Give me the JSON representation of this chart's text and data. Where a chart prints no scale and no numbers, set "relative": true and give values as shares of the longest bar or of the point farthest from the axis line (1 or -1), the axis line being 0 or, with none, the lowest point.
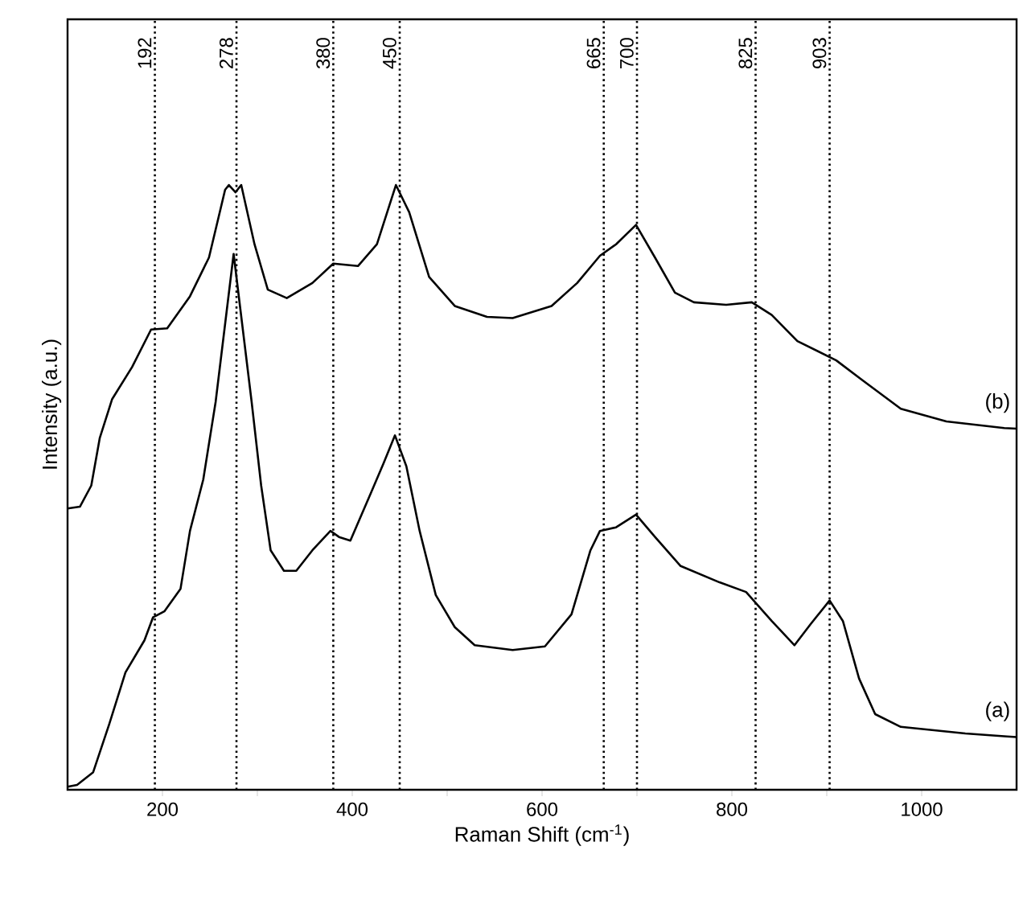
{
  "chart_data": {
    "type": "line",
    "relative": true,
    "xlabel": "Raman Shift (cm$^{-1}$)",
    "ylabel": "Intensity (a.u.)",
    "xlim": [
      100,
      1100
    ],
    "xticks": [
      200,
      {
        "value": 300,
        "label": null
      },
      400,
      {
        "value": 500,
        "label": null
      },
      600,
      {
        "value": 700,
        "label": null
      },
      800,
      {
        "value": 900,
        "label": null
      },
      1000
    ],
    "tick_labels": "x",
    "grid": false,
    "marker": "none",
    "line_style": "solid",
    "series": [
      {
        "name": "(a)",
        "color": "#000000",
        "x": [
          100,
          110,
          127,
          144,
          161,
          181,
          190,
          202,
          219,
          229,
          243,
          256,
          275,
          294,
          304,
          314,
          328,
          341,
          358,
          377,
          386,
          398,
          420,
          433,
          445,
          457,
          471,
          488,
          508,
          529,
          569,
          603,
          631,
          651,
          661,
          678,
          699,
          719,
          746,
          787,
          815,
          842,
          866,
          883,
          903,
          917,
          934,
          951,
          978,
          1046,
          1090,
          1100
        ],
        "values": [
          0.005,
          0.008,
          0.029,
          0.109,
          0.194,
          0.247,
          0.285,
          0.295,
          0.332,
          0.428,
          0.513,
          0.641,
          0.886,
          0.641,
          0.503,
          0.396,
          0.362,
          0.362,
          0.396,
          0.428,
          0.418,
          0.412,
          0.492,
          0.54,
          0.586,
          0.535,
          0.428,
          0.322,
          0.269,
          0.239,
          0.231,
          0.237,
          0.29,
          0.396,
          0.428,
          0.434,
          0.455,
          0.418,
          0.37,
          0.343,
          0.327,
          0.279,
          0.239,
          0.274,
          0.313,
          0.279,
          0.184,
          0.125,
          0.104,
          0.093,
          0.088,
          0.087
        ]
      },
      {
        "name": "(b)",
        "color": "#000000",
        "x": [
          100,
          113,
          125,
          134,
          147,
          168,
          188,
          205,
          229,
          249,
          266,
          270,
          277,
          283,
          297,
          311,
          331,
          358,
          380,
          406,
          426,
          446,
          460,
          481,
          508,
          542,
          569,
          610,
          637,
          661,
          678,
          699,
          719,
          740,
          760,
          794,
          821,
          842,
          869,
          910,
          937,
          978,
          1026,
          1087,
          1100
        ],
        "values": [
          0.465,
          0.468,
          0.503,
          0.582,
          0.646,
          0.699,
          0.761,
          0.763,
          0.816,
          0.88,
          0.992,
          1.0,
          0.988,
          1.0,
          0.902,
          0.827,
          0.813,
          0.838,
          0.87,
          0.866,
          0.902,
          1.0,
          0.955,
          0.848,
          0.8,
          0.782,
          0.78,
          0.8,
          0.838,
          0.883,
          0.902,
          0.934,
          0.88,
          0.822,
          0.806,
          0.802,
          0.806,
          0.785,
          0.742,
          0.71,
          0.678,
          0.63,
          0.609,
          0.598,
          0.597
        ]
      }
    ],
    "ref_lines": [
      {
        "axis": "x",
        "value": 192,
        "label": "192",
        "color": "#000000",
        "line_style": "dotted"
      },
      {
        "axis": "x",
        "value": 278,
        "label": "278",
        "color": "#000000",
        "line_style": "dotted"
      },
      {
        "axis": "x",
        "value": 380,
        "label": "380",
        "color": "#000000",
        "line_style": "dotted"
      },
      {
        "axis": "x",
        "value": 450,
        "label": "450",
        "color": "#000000",
        "line_style": "dotted"
      },
      {
        "axis": "x",
        "value": 665,
        "label": "665",
        "color": "#000000",
        "line_style": "dotted"
      },
      {
        "axis": "x",
        "value": 700,
        "label": "700",
        "color": "#000000",
        "line_style": "dotted"
      },
      {
        "axis": "x",
        "value": 825,
        "label": "825",
        "color": "#000000",
        "line_style": "dotted"
      },
      {
        "axis": "x",
        "value": 903,
        "label": "903",
        "color": "#000000",
        "line_style": "dotted"
      }
    ]
  }
}
